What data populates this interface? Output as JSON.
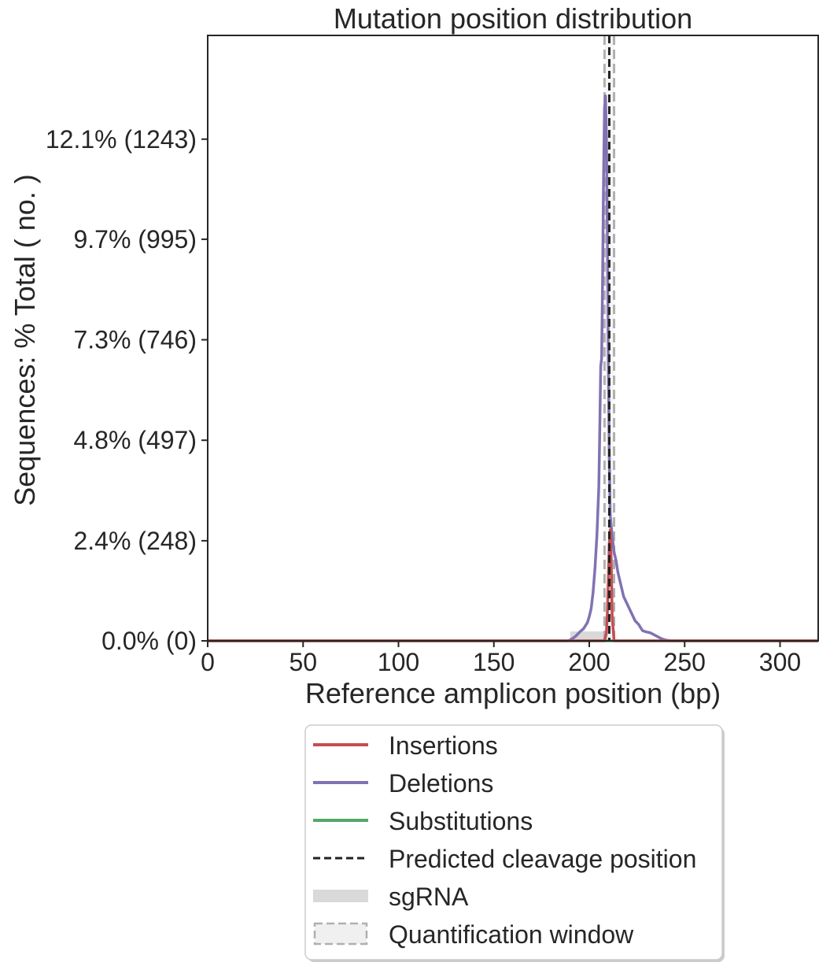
{
  "chart_data": {
    "type": "line",
    "title": "Mutation position distribution",
    "xlabel": "Reference amplicon position (bp)",
    "ylabel": "Sequences: % Total ( no. )",
    "xlim": [
      0,
      320
    ],
    "ylim": [
      0,
      1500
    ],
    "x_ticks": [
      0,
      50,
      100,
      150,
      200,
      250,
      300
    ],
    "y_ticks": [
      {
        "value": 0,
        "label": "0.0% (0)"
      },
      {
        "value": 248,
        "label": "2.4% (248)"
      },
      {
        "value": 497,
        "label": "4.8% (497)"
      },
      {
        "value": 746,
        "label": "7.3% (746)"
      },
      {
        "value": 995,
        "label": "9.7% (995)"
      },
      {
        "value": 1243,
        "label": "12.1% (1243)"
      }
    ],
    "grid": false,
    "legend_position": "below",
    "series": [
      {
        "name": "Insertions",
        "color": "#c44e52",
        "points": [
          [
            0,
            0
          ],
          [
            208,
            0
          ],
          [
            209,
            20
          ],
          [
            209.5,
            70
          ],
          [
            210,
            150
          ],
          [
            210.5,
            240
          ],
          [
            211,
            275
          ],
          [
            211.5,
            200
          ],
          [
            212,
            60
          ],
          [
            213,
            0
          ],
          [
            320,
            0
          ]
        ]
      },
      {
        "name": "Deletions",
        "color": "#8172b2",
        "points": [
          [
            0,
            0
          ],
          [
            189,
            0
          ],
          [
            191,
            5
          ],
          [
            193,
            12
          ],
          [
            195,
            22
          ],
          [
            197,
            30
          ],
          [
            199,
            45
          ],
          [
            200,
            60
          ],
          [
            201,
            80
          ],
          [
            202,
            120
          ],
          [
            203,
            180
          ],
          [
            204,
            260
          ],
          [
            205,
            380
          ],
          [
            205.5,
            520
          ],
          [
            206,
            680
          ],
          [
            206.5,
            700
          ],
          [
            207,
            900
          ],
          [
            207.5,
            1150
          ],
          [
            208,
            1320
          ],
          [
            208.5,
            1350
          ],
          [
            209,
            1250
          ],
          [
            209.5,
            1000
          ],
          [
            210,
            700
          ],
          [
            210.5,
            450
          ],
          [
            211,
            310
          ],
          [
            212,
            260
          ],
          [
            213,
            220
          ],
          [
            214,
            200
          ],
          [
            215,
            170
          ],
          [
            216,
            150
          ],
          [
            217,
            130
          ],
          [
            218,
            110
          ],
          [
            219,
            100
          ],
          [
            220,
            90
          ],
          [
            221,
            80
          ],
          [
            222,
            70
          ],
          [
            223,
            60
          ],
          [
            224,
            50
          ],
          [
            225,
            45
          ],
          [
            226,
            40
          ],
          [
            227,
            32
          ],
          [
            228,
            25
          ],
          [
            230,
            22
          ],
          [
            232,
            20
          ],
          [
            234,
            15
          ],
          [
            236,
            10
          ],
          [
            238,
            5
          ],
          [
            240,
            2
          ],
          [
            243,
            0
          ],
          [
            320,
            0
          ]
        ]
      },
      {
        "name": "Substitutions",
        "color": "#55a868",
        "points": [
          [
            0,
            0
          ],
          [
            320,
            0
          ]
        ]
      }
    ],
    "predicted_cleavage": {
      "name": "Predicted cleavage position",
      "x": 210.5,
      "color": "#222222"
    },
    "sgrna": {
      "name": "sgRNA",
      "x_start": 190,
      "x_end": 210,
      "color": "#d9d9d9"
    },
    "quantification_window": {
      "name": "Quantification window",
      "x_start": 208,
      "x_end": 213,
      "color": "#b0b0b0"
    }
  }
}
